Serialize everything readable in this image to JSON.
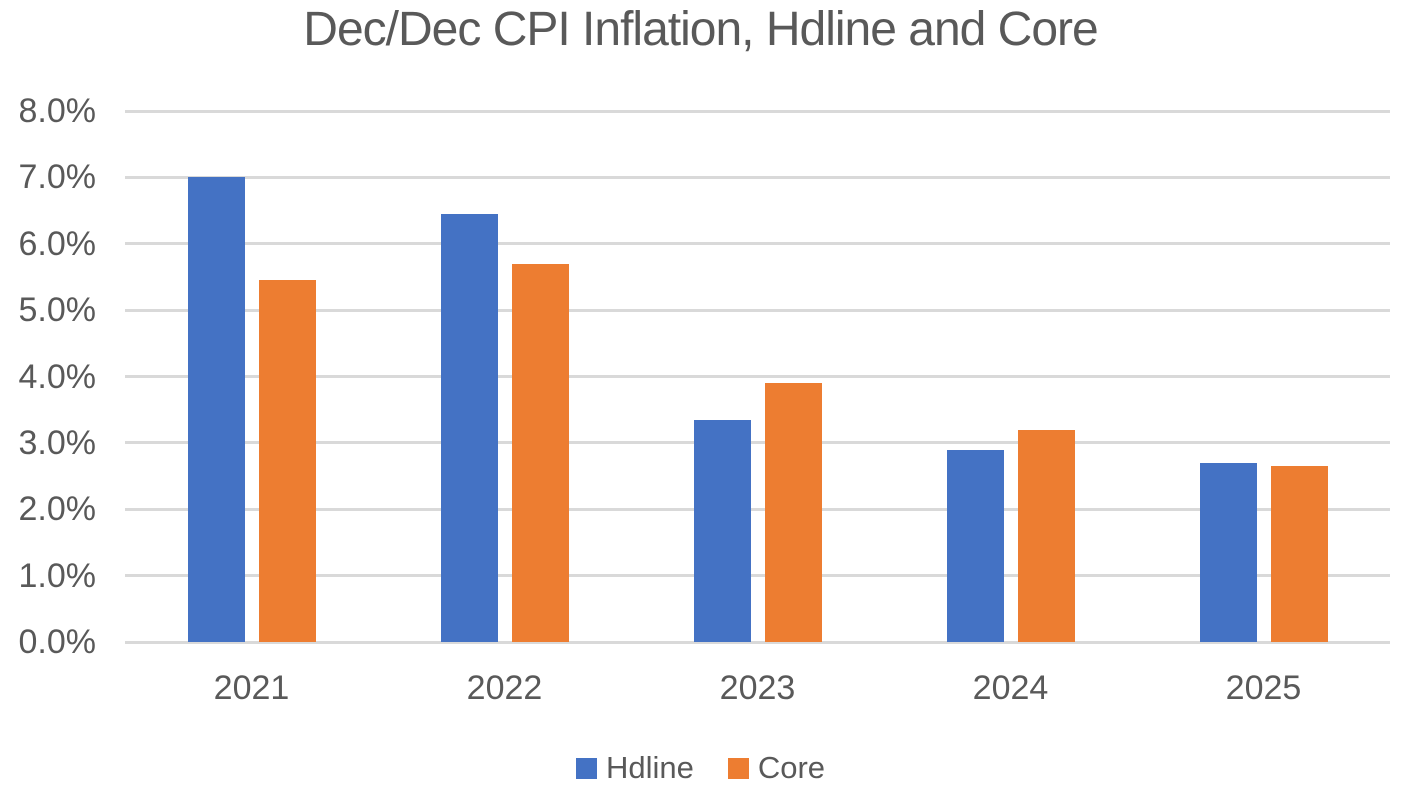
{
  "chart_data": {
    "type": "bar",
    "title": "Dec/Dec CPI Inflation, Hdline and Core",
    "categories": [
      "2021",
      "2022",
      "2023",
      "2024",
      "2025"
    ],
    "series": [
      {
        "name": "Hdline",
        "color": "#4472C4",
        "values": [
          7.0,
          6.45,
          3.35,
          2.9,
          2.7
        ]
      },
      {
        "name": "Core",
        "color": "#ED7D31",
        "values": [
          5.45,
          5.7,
          3.9,
          3.2,
          2.65
        ]
      }
    ],
    "xlabel": "",
    "ylabel": "",
    "ylim": [
      0,
      8
    ],
    "y_tick_step": 1,
    "y_tick_labels": [
      "0.0%",
      "1.0%",
      "2.0%",
      "3.0%",
      "4.0%",
      "5.0%",
      "6.0%",
      "7.0%",
      "8.0%"
    ],
    "grid": "horizontal",
    "legend_position": "bottom",
    "legend": [
      {
        "label": "Hdline",
        "color": "#4472C4"
      },
      {
        "label": "Core",
        "color": "#ED7D31"
      }
    ],
    "colors": {
      "gridline": "#D9D9D9",
      "axis_text": "#595959",
      "title_text": "#595959",
      "background": "#FFFFFF"
    }
  }
}
